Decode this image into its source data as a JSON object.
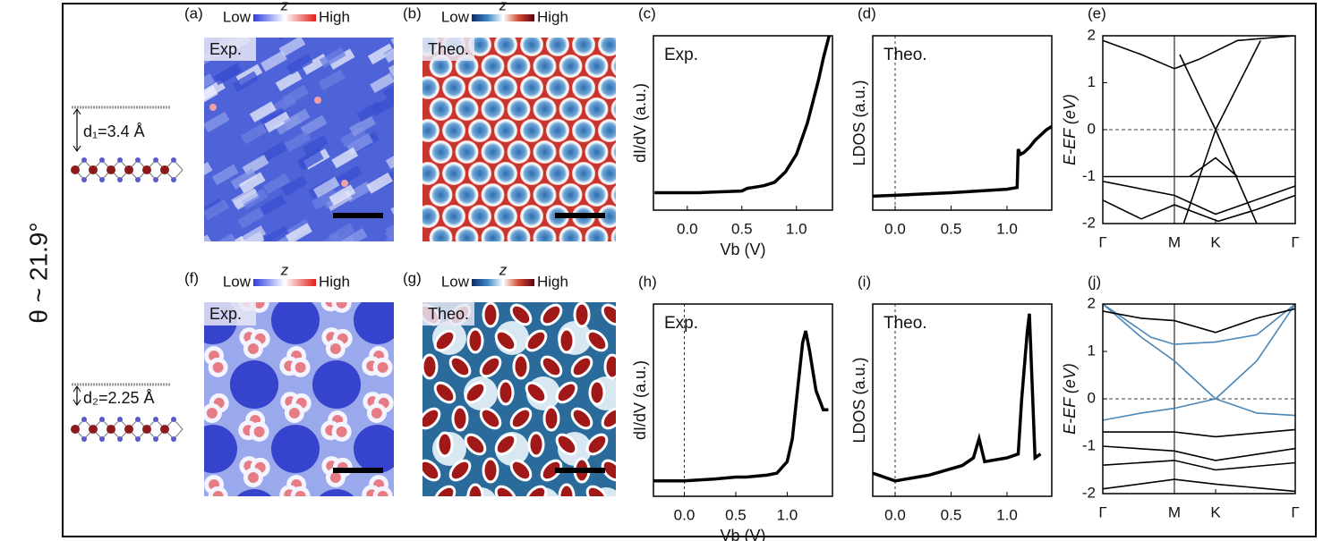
{
  "figure": {
    "angle_label": "θ ~ 21.9°"
  },
  "structures": [
    {
      "label": "d₁=3.4 Å"
    },
    {
      "label": "d₂=2.25 Å"
    }
  ],
  "maps": [
    {
      "panel": "(a)",
      "low": "Low",
      "z": "z",
      "high": "High",
      "tag": "Exp.",
      "colorbar": [
        "#2e3ee0",
        "#ffffff",
        "#e0201c"
      ]
    },
    {
      "panel": "(b)",
      "low": "Low",
      "z": "z",
      "high": "High",
      "tag": "Theo.",
      "colorbar": [
        "#0d2a66",
        "#3b86c4",
        "#ffffff",
        "#d04a30",
        "#5a0010"
      ]
    },
    {
      "panel": "(f)",
      "low": "Low",
      "z": "z",
      "high": "High",
      "tag": "Exp.",
      "colorbar": [
        "#2e3ee0",
        "#ffffff",
        "#e0201c"
      ]
    },
    {
      "panel": "(g)",
      "low": "Low",
      "z": "z",
      "high": "High",
      "tag": "Theo.",
      "colorbar": [
        "#0d2a66",
        "#3b86c4",
        "#ffffff",
        "#d04a30",
        "#5a0010"
      ]
    }
  ],
  "chart_data": [
    {
      "type": "spectrum",
      "panel": "(c)",
      "annotation": "Exp.",
      "ylabel": "dI/dV (a.u.)",
      "xlabel": "Vb (V)",
      "xlim": [
        -0.31,
        1.33
      ],
      "ylim": [
        0,
        1
      ],
      "xticks": [
        {
          "value": 0,
          "label": "0.0"
        },
        0.5,
        {
          "value": 1,
          "label": "1.0"
        }
      ],
      "x": [
        -0.3,
        -0.1,
        0.1,
        0.3,
        0.5,
        0.55,
        0.6,
        0.7,
        0.8,
        0.9,
        1.0,
        1.1,
        1.2,
        1.25,
        1.3
      ],
      "values": [
        0.1,
        0.1,
        0.1,
        0.105,
        0.11,
        0.125,
        0.13,
        0.14,
        0.16,
        0.22,
        0.32,
        0.5,
        0.74,
        0.88,
        1.0
      ],
      "color": "#000000"
    },
    {
      "type": "spectrum",
      "panel": "(d)",
      "annotation": "Theo.",
      "ylabel": "LDOS (a.u.)",
      "xlabel": null,
      "xlim": [
        -0.2,
        1.4
      ],
      "ylim": [
        0,
        1
      ],
      "dashed_vline": 0,
      "xticks": [
        {
          "value": 0,
          "label": "0.0"
        },
        0.5,
        {
          "value": 1,
          "label": "1.0"
        }
      ],
      "x": [
        -0.2,
        0,
        0.5,
        1.0,
        1.09,
        1.1,
        1.12,
        1.15,
        1.2,
        1.25,
        1.3,
        1.35,
        1.4
      ],
      "values": [
        0.08,
        0.085,
        0.1,
        0.12,
        0.13,
        0.35,
        0.32,
        0.33,
        0.36,
        0.4,
        0.43,
        0.46,
        0.48
      ],
      "color": "#000000"
    },
    {
      "type": "bands",
      "panel": "(e)",
      "ylabel": "E-EF (eV)",
      "xlim": [
        0,
        1
      ],
      "ylim": [
        -2,
        2
      ],
      "yticks": [
        2,
        1,
        0,
        -1,
        -2
      ],
      "xticks": [
        {
          "value": 0,
          "label": "Γ"
        },
        {
          "value": 0.372,
          "label": "M"
        },
        {
          "value": 0.586,
          "label": "K"
        },
        {
          "value": 1,
          "label": "Γ"
        }
      ],
      "vlines": [
        0.372
      ],
      "dashed_hline": 0,
      "series": [
        {
          "x": [
            0.4,
            0.586,
            0.8
          ],
          "values": [
            1.6,
            0,
            -2
          ],
          "color": "#000000"
        },
        {
          "x": [
            0.42,
            0.586,
            0.82
          ],
          "values": [
            -2,
            0,
            1.9
          ],
          "color": "#000000"
        },
        {
          "x": [
            0,
            1
          ],
          "values": [
            -1.0,
            -1.0
          ],
          "color": "#000000"
        },
        {
          "x": [
            0,
            0.2,
            0.372,
            0.5,
            0.7,
            1
          ],
          "values": [
            1.9,
            1.6,
            1.3,
            1.5,
            1.9,
            2.0
          ],
          "color": "#000000"
        },
        {
          "x": [
            0,
            0.372,
            0.586,
            1
          ],
          "values": [
            -1.1,
            -1.4,
            -1.8,
            -1.2
          ],
          "color": "#000000"
        },
        {
          "x": [
            0.45,
            0.586,
            0.7
          ],
          "values": [
            -1.0,
            -0.6,
            -1.0
          ],
          "color": "#000000"
        },
        {
          "x": [
            0,
            0.2,
            0.372,
            0.6,
            0.8,
            1
          ],
          "values": [
            -1.5,
            -1.9,
            -1.6,
            -1.95,
            -1.7,
            -1.4
          ],
          "color": "#000000"
        }
      ]
    },
    {
      "type": "spectrum",
      "panel": "(h)",
      "annotation": "Exp.",
      "ylabel": "dI/dV (a.u.)",
      "xlabel": "Vb (V)",
      "xlim": [
        -0.3,
        1.44
      ],
      "ylim": [
        0,
        1
      ],
      "dashed_vline": 0,
      "xticks": [
        {
          "value": 0,
          "label": "0.0"
        },
        0.5,
        {
          "value": 1,
          "label": "1.0"
        }
      ],
      "x": [
        -0.3,
        0,
        0.3,
        0.5,
        0.6,
        0.8,
        0.9,
        1.0,
        1.05,
        1.1,
        1.15,
        1.18,
        1.22,
        1.28,
        1.35,
        1.4
      ],
      "values": [
        0.08,
        0.08,
        0.09,
        0.1,
        0.1,
        0.11,
        0.12,
        0.18,
        0.3,
        0.55,
        0.8,
        0.86,
        0.75,
        0.55,
        0.45,
        0.45
      ],
      "color": "#000000"
    },
    {
      "type": "spectrum",
      "panel": "(i)",
      "annotation": "Theo.",
      "ylabel": "LDOS (a.u.)",
      "xlabel": null,
      "xlim": [
        -0.2,
        1.4
      ],
      "ylim": [
        0,
        1
      ],
      "dashed_vline": 0,
      "xticks": [
        {
          "value": 0,
          "label": "0.0"
        },
        0.5,
        {
          "value": 1,
          "label": "1.0"
        }
      ],
      "x": [
        -0.2,
        0,
        0.3,
        0.6,
        0.7,
        0.75,
        0.8,
        1.0,
        1.1,
        1.13,
        1.18,
        1.2,
        1.25,
        1.3
      ],
      "values": [
        0.12,
        0.08,
        0.11,
        0.16,
        0.2,
        0.3,
        0.18,
        0.2,
        0.22,
        0.5,
        0.85,
        0.95,
        0.2,
        0.22
      ],
      "color": "#000000"
    },
    {
      "type": "bands",
      "panel": "(j)",
      "ylabel": "E-EF (eV)",
      "xlim": [
        0,
        1
      ],
      "ylim": [
        -2,
        2
      ],
      "yticks": [
        2,
        1,
        0,
        -1,
        -2
      ],
      "xticks": [
        {
          "value": 0,
          "label": "Γ"
        },
        {
          "value": 0.372,
          "label": "M"
        },
        {
          "value": 0.586,
          "label": "K"
        },
        {
          "value": 1,
          "label": "Γ"
        }
      ],
      "vlines": [
        0.372
      ],
      "dashed_hline": 0,
      "series": [
        {
          "x": [
            0,
            0.25,
            0.372,
            0.586,
            0.8,
            1
          ],
          "values": [
            2.0,
            1.3,
            1.15,
            1.2,
            1.35,
            2.0
          ],
          "color": "#4a86b8"
        },
        {
          "x": [
            0,
            0.2,
            0.372,
            0.586,
            0.8,
            1
          ],
          "values": [
            2.0,
            1.3,
            0.8,
            0,
            -0.3,
            -0.35
          ],
          "color": "#4a86b8"
        },
        {
          "x": [
            0,
            0.2,
            0.372,
            0.586,
            0.8,
            1
          ],
          "values": [
            -0.45,
            -0.3,
            -0.2,
            0,
            0.8,
            2.0
          ],
          "color": "#4a86b8"
        },
        {
          "x": [
            0,
            0.372,
            0.586,
            1
          ],
          "values": [
            -0.7,
            -0.7,
            -0.8,
            -0.65
          ],
          "color": "#000000"
        },
        {
          "x": [
            0,
            0.372,
            0.586,
            1
          ],
          "values": [
            -1.0,
            -1.1,
            -1.3,
            -1.05
          ],
          "color": "#000000"
        },
        {
          "x": [
            0,
            0.372,
            0.586,
            1
          ],
          "values": [
            -1.4,
            -1.3,
            -1.5,
            -1.35
          ],
          "color": "#000000"
        },
        {
          "x": [
            0,
            0.372,
            0.586,
            1
          ],
          "values": [
            -1.9,
            -1.7,
            -1.8,
            -1.95
          ],
          "color": "#000000"
        },
        {
          "x": [
            0,
            0.2,
            0.372,
            0.586,
            0.8,
            1
          ],
          "values": [
            1.85,
            1.7,
            1.65,
            1.4,
            1.7,
            1.9
          ],
          "color": "#000000"
        }
      ]
    }
  ]
}
